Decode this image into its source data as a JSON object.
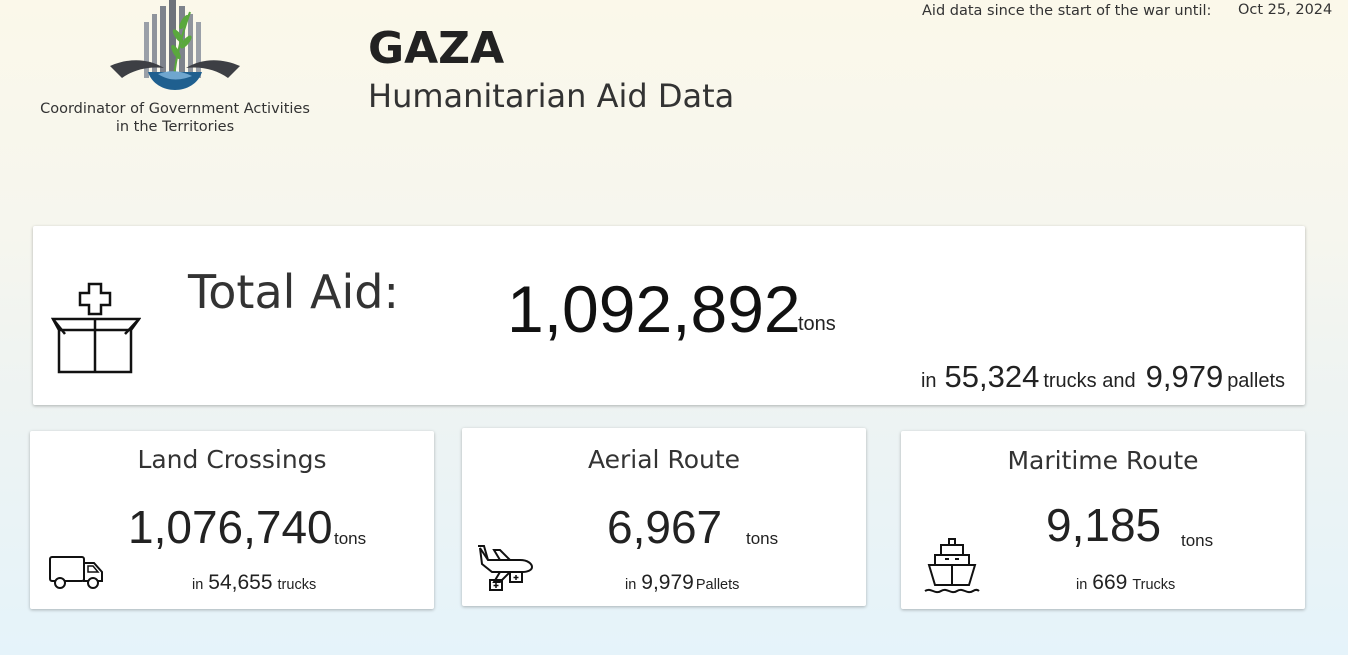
{
  "header": {
    "org_name_line1": "Coordinator of Government Activities",
    "org_name_line2": "in the Territories",
    "title": "GAZA",
    "subtitle": "Humanitarian Aid Data",
    "asof_label": "Aid data since the start of the war until:",
    "asof_date": "Oct 25, 2024"
  },
  "total": {
    "label": "Total Aid:",
    "value": "1,092,892",
    "unit": "tons",
    "in_label": "in",
    "trucks_value": "55,324",
    "trucks_label": "trucks and",
    "pallets_value": "9,979",
    "pallets_label": "pallets",
    "icon": "aid-box-icon"
  },
  "routes": [
    {
      "title": "Land Crossings",
      "value": "1,076,740",
      "unit": "tons",
      "in_label": "in",
      "count": "54,655",
      "count_label": "trucks",
      "icon": "truck-icon"
    },
    {
      "title": "Aerial Route",
      "value": "6,967",
      "unit": "tons",
      "in_label": "in",
      "count": "9,979",
      "count_label": "Pallets",
      "icon": "airplane-airdrop-icon"
    },
    {
      "title": "Maritime Route",
      "value": "9,185",
      "unit": "tons",
      "in_label": "in",
      "count": "669",
      "count_label": "Trucks",
      "icon": "ship-icon"
    }
  ],
  "colors": {
    "logo_blue": "#1f5f8f",
    "logo_green": "#5aa83c",
    "logo_grey": "#8a8d96"
  }
}
